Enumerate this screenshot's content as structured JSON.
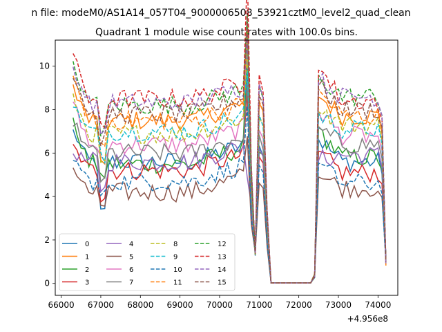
{
  "figure": {
    "suptitle": "n file: modeM0/AS1A14_057T04_9000006508_53921cztM0_level2_quad_clean",
    "title": "Quadrant 1 module wise count rates with 100.0s bins.",
    "offset_text": "+4.956e8"
  },
  "chart_data": {
    "type": "line",
    "title": "Quadrant 1 module wise count rates with 100.0s bins.",
    "xlabel": "",
    "ylabel": "",
    "x_offset": 495600000,
    "xlim": [
      65850,
      74500
    ],
    "ylim": [
      -0.55,
      11.2
    ],
    "xticks": [
      66000,
      67000,
      68000,
      69000,
      70000,
      71000,
      72000,
      73000,
      74000
    ],
    "yticks": [
      0,
      2,
      4,
      6,
      8,
      10
    ],
    "grid": false,
    "legend": {
      "placement": "lower-left",
      "columns": 4
    },
    "x_start": 66300,
    "x_step": 100,
    "n_points": 80,
    "gap_start": 71300,
    "gap_end": 72300,
    "series": [
      {
        "name": "0",
        "color": "#1f77b4",
        "dash": "solid",
        "level": 5.6,
        "start": 7.0,
        "dip_min": 3.3,
        "after": 5.6
      },
      {
        "name": "1",
        "color": "#ff7f0e",
        "dash": "solid",
        "level": 7.5,
        "start": 9.1,
        "dip_min": 5.5,
        "after": 7.7
      },
      {
        "name": "2",
        "color": "#2ca02c",
        "dash": "solid",
        "level": 5.5,
        "start": 7.4,
        "dip_min": 5.0,
        "after": 5.8
      },
      {
        "name": "3",
        "color": "#d62728",
        "dash": "solid",
        "level": 5.2,
        "start": 6.3,
        "dip_min": 4.0,
        "after": 5.1
      },
      {
        "name": "4",
        "color": "#9467bd",
        "dash": "solid",
        "level": 5.6,
        "start": 6.0,
        "dip_min": 4.3,
        "after": 5.9
      },
      {
        "name": "5",
        "color": "#8c564b",
        "dash": "solid",
        "level": 4.2,
        "start": 5.3,
        "dip_min": 3.6,
        "after": 4.4
      },
      {
        "name": "6",
        "color": "#e377c2",
        "dash": "solid",
        "level": 6.4,
        "start": 8.4,
        "dip_min": 5.6,
        "after": 6.8
      },
      {
        "name": "7",
        "color": "#7f7f7f",
        "dash": "solid",
        "level": 6.0,
        "start": 7.5,
        "dip_min": 4.8,
        "after": 6.4
      },
      {
        "name": "8",
        "color": "#bcbd22",
        "dash": "dashed",
        "level": 6.9,
        "start": 8.5,
        "dip_min": 5.4,
        "after": 7.3
      },
      {
        "name": "9",
        "color": "#17becf",
        "dash": "dashed",
        "level": 7.0,
        "start": 8.2,
        "dip_min": 5.8,
        "after": 7.1
      },
      {
        "name": "10",
        "color": "#1f77b4",
        "dash": "dashed",
        "level": 4.7,
        "start": 5.8,
        "dip_min": 4.0,
        "after": 4.6
      },
      {
        "name": "11",
        "color": "#ff7f0e",
        "dash": "dashed",
        "level": 7.5,
        "start": 9.3,
        "dip_min": 6.4,
        "after": 7.7
      },
      {
        "name": "12",
        "color": "#2ca02c",
        "dash": "dashed",
        "level": 8.2,
        "start": 10.0,
        "dip_min": 7.0,
        "after": 8.6
      },
      {
        "name": "13",
        "color": "#d62728",
        "dash": "dashed",
        "level": 8.5,
        "start": 10.5,
        "dip_min": 7.2,
        "after": 8.4
      },
      {
        "name": "14",
        "color": "#9467bd",
        "dash": "dashed",
        "level": 8.3,
        "start": 9.9,
        "dip_min": 7.0,
        "after": 8.6
      },
      {
        "name": "15",
        "color": "#8c564b",
        "dash": "dashed",
        "level": 7.8,
        "start": 9.6,
        "dip_min": 6.6,
        "after": 8.0
      }
    ]
  }
}
